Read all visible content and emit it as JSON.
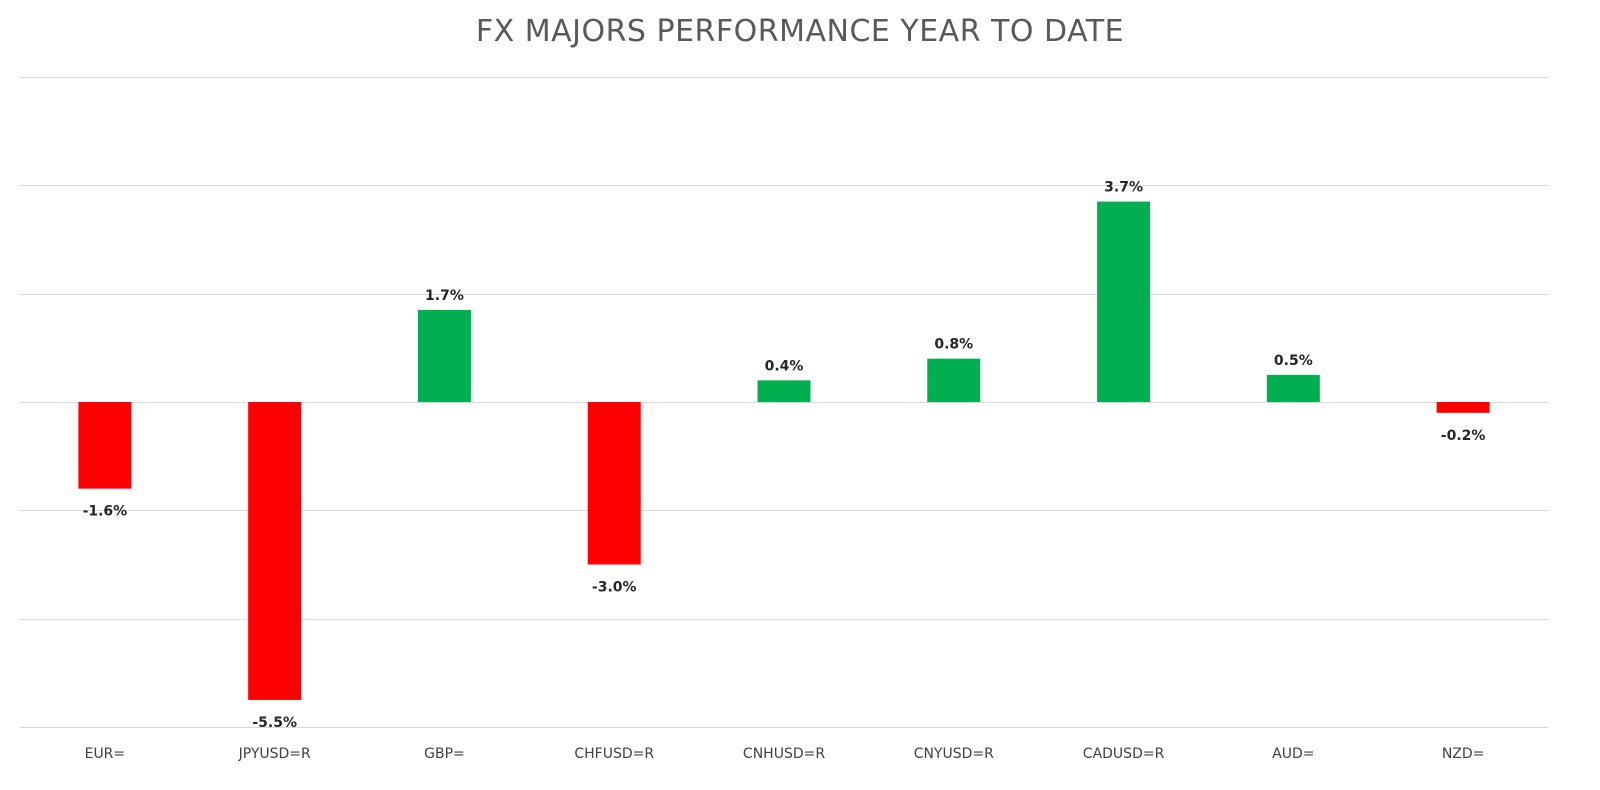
{
  "chart_data": {
    "type": "bar",
    "title": "FX MAJORS PERFORMANCE YEAR TO DATE",
    "xlabel": "",
    "ylabel": "",
    "categories": [
      "EUR=",
      "JPYUSD=R",
      "GBP=",
      "CHFUSD=R",
      "CNHUSD=R",
      "CNYUSD=R",
      "CADUSD=R",
      "AUD=",
      "NZD="
    ],
    "values": [
      -1.6,
      -5.5,
      1.7,
      -3.0,
      0.4,
      0.8,
      3.7,
      0.5,
      -0.2
    ],
    "data_labels": [
      "-1.6%",
      "-5.5%",
      "1.7%",
      "-3.0%",
      "0.4%",
      "0.8%",
      "3.7%",
      "0.5%",
      "-0.2%"
    ],
    "ylim": [
      -6,
      6
    ],
    "gridlines": [
      -6,
      -4,
      -2,
      0,
      2,
      4,
      6
    ],
    "grid": true,
    "legend": "none",
    "colors": {
      "positive": "#00b050",
      "negative": "#ff0000",
      "grid": "#d9d9d9"
    }
  }
}
